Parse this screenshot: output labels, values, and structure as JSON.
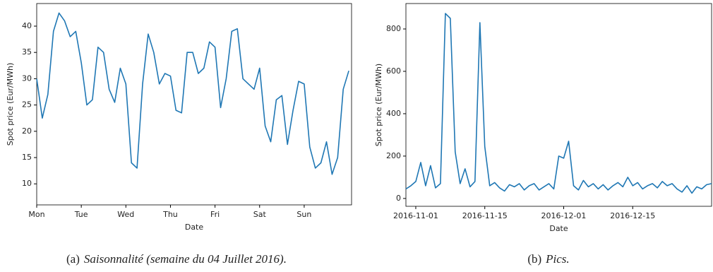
{
  "chart_data": [
    {
      "type": "line",
      "xlabel": "Date",
      "ylabel": "Spot price (Eur/MWh)",
      "caption_label": "(a)",
      "caption": "Saisonnalité (semaine du 04 Juillet 2016).",
      "categories": [
        "Mon",
        null,
        null,
        null,
        null,
        null,
        null,
        null,
        "Tue",
        null,
        null,
        null,
        null,
        null,
        null,
        null,
        "Wed",
        null,
        null,
        null,
        null,
        null,
        null,
        null,
        "Thu",
        null,
        null,
        null,
        null,
        null,
        null,
        null,
        "Fri",
        null,
        null,
        null,
        null,
        null,
        null,
        null,
        "Sat",
        null,
        null,
        null,
        null,
        null,
        null,
        null,
        "Sun",
        null,
        null,
        null,
        null,
        null,
        null,
        null,
        null
      ],
      "values": [
        30,
        22.5,
        27,
        39,
        42.5,
        41,
        38,
        39,
        33,
        25,
        26,
        36,
        35,
        28,
        25.5,
        32,
        29,
        14,
        13,
        29,
        38.5,
        35,
        29,
        31,
        30.5,
        24,
        23.5,
        35,
        35,
        31,
        32,
        37,
        36,
        24.5,
        30,
        39,
        39.5,
        30,
        29,
        28,
        32,
        21,
        18,
        26,
        26.8,
        17.5,
        24,
        29.5,
        29,
        17,
        13,
        14,
        18,
        11.8,
        15,
        28,
        31.5
      ],
      "color": "#1f77b4",
      "ylim": [
        6,
        44.3
      ],
      "yticks": [
        10,
        15,
        20,
        25,
        30,
        35,
        40
      ]
    },
    {
      "type": "line",
      "xlabel": "Date",
      "ylabel": "Spot price (Eur/MWh)",
      "caption_label": "(b)",
      "caption": "Pics.",
      "x": [
        "2016-10-30",
        "2016-10-31",
        "2016-11-01",
        "2016-11-02",
        "2016-11-03",
        "2016-11-04",
        "2016-11-05",
        "2016-11-06",
        "2016-11-07",
        "2016-11-08",
        "2016-11-09",
        "2016-11-10",
        "2016-11-11",
        "2016-11-12",
        "2016-11-13",
        "2016-11-14",
        "2016-11-15",
        "2016-11-16",
        "2016-11-17",
        "2016-11-18",
        "2016-11-19",
        "2016-11-20",
        "2016-11-21",
        "2016-11-22",
        "2016-11-23",
        "2016-11-24",
        "2016-11-25",
        "2016-11-26",
        "2016-11-27",
        "2016-11-28",
        "2016-11-29",
        "2016-11-30",
        "2016-12-01",
        "2016-12-02",
        "2016-12-03",
        "2016-12-04",
        "2016-12-05",
        "2016-12-06",
        "2016-12-07",
        "2016-12-08",
        "2016-12-09",
        "2016-12-10",
        "2016-12-11",
        "2016-12-12",
        "2016-12-13",
        "2016-12-14",
        "2016-12-15",
        "2016-12-16",
        "2016-12-17",
        "2016-12-18",
        "2016-12-19",
        "2016-12-20",
        "2016-12-21",
        "2016-12-22",
        "2016-12-23",
        "2016-12-24",
        "2016-12-25",
        "2016-12-26",
        "2016-12-27",
        "2016-12-28",
        "2016-12-29",
        "2016-12-30",
        "2016-12-31"
      ],
      "values": [
        45,
        60,
        80,
        170,
        60,
        155,
        50,
        70,
        873,
        850,
        220,
        70,
        140,
        55,
        80,
        830,
        245,
        60,
        75,
        50,
        35,
        65,
        55,
        70,
        40,
        60,
        70,
        40,
        55,
        70,
        45,
        200,
        190,
        270,
        60,
        40,
        85,
        55,
        70,
        45,
        65,
        40,
        60,
        75,
        55,
        100,
        60,
        75,
        45,
        60,
        70,
        50,
        80,
        60,
        70,
        45,
        30,
        60,
        25,
        55,
        45,
        65,
        70
      ],
      "color": "#1f77b4",
      "xlim": [
        "2016-10-30",
        "2016-12-31"
      ],
      "xticks": [
        "2016-11-01",
        "2016-11-15",
        "2016-12-01",
        "2016-12-15"
      ],
      "ylim": [
        -37,
        920
      ],
      "yticks": [
        0,
        200,
        400,
        600,
        800
      ]
    }
  ]
}
